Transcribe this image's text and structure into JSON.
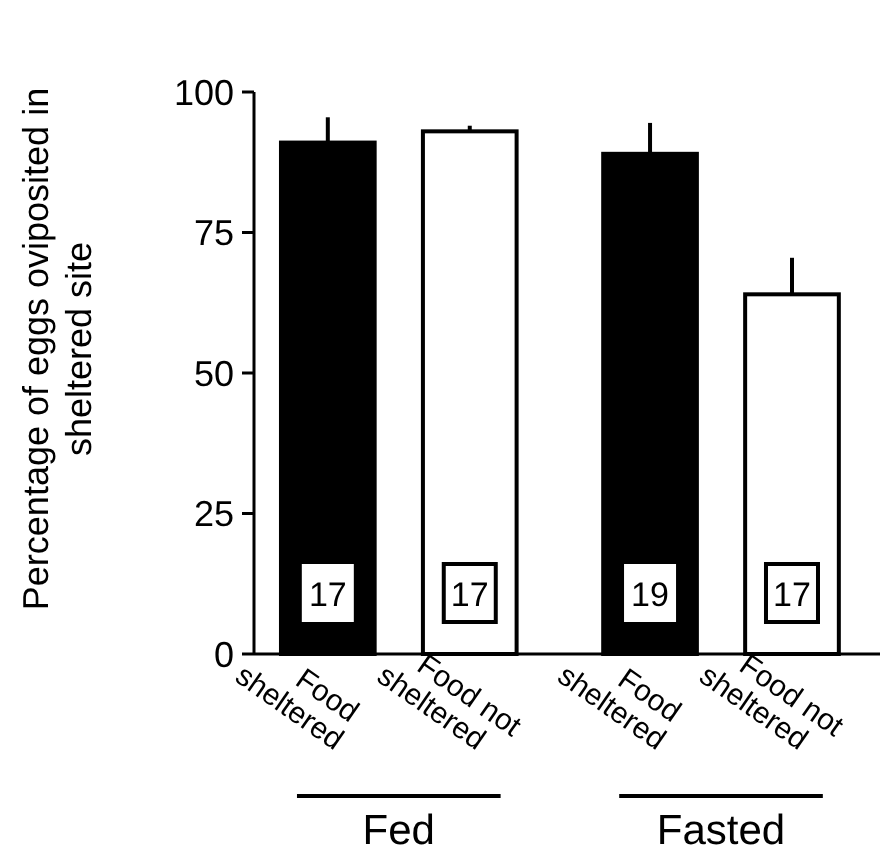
{
  "chart_data": {
    "type": "bar",
    "ylabel": "Percentage of eggs oviposited in sheltered site",
    "categories": [
      "Food sheltered",
      "Food not sheltered",
      "Food sheltered",
      "Food not sheltered"
    ],
    "values": [
      91,
      93,
      89,
      64
    ],
    "colors": [
      "#000000",
      "#ffffff",
      "#000000",
      "#ffffff"
    ],
    "errors": [
      [
        91,
        95.5
      ],
      [
        93,
        94
      ],
      [
        89,
        94.5
      ],
      [
        64,
        70.5
      ]
    ],
    "ylim": [
      0,
      100
    ],
    "yticks": [
      0,
      25,
      50,
      75,
      100
    ],
    "grid": false,
    "annotations": [
      "17",
      "17",
      "19",
      "17",
      "Fed",
      "Fasted"
    ]
  }
}
